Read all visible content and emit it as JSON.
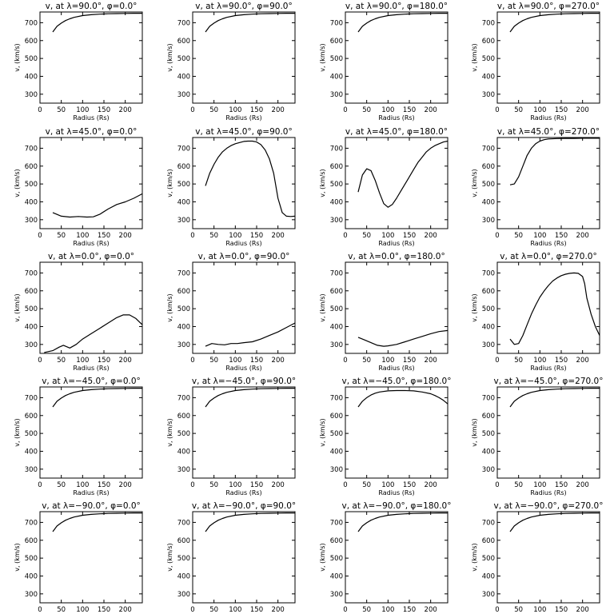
{
  "chart_data": [
    {
      "type": "line",
      "title": "v, at λ=90.0°, φ=0.0°",
      "xlabel": "Radius (Rs)",
      "ylabel": "v, (km/s)",
      "xlim": [
        0,
        240
      ],
      "ylim": [
        250,
        760
      ],
      "xticks": [
        0,
        50,
        100,
        150,
        200
      ],
      "yticks": [
        300,
        400,
        500,
        600,
        700
      ],
      "x": [
        30,
        40,
        50,
        60,
        70,
        80,
        100,
        120,
        140,
        160,
        180,
        200,
        220,
        240
      ],
      "y": [
        648,
        680,
        698,
        712,
        722,
        730,
        740,
        745,
        748,
        750,
        751,
        752,
        753,
        753
      ]
    },
    {
      "type": "line",
      "title": "v, at λ=90.0°, φ=90.0°",
      "xlabel": "Radius (Rs)",
      "ylabel": "v, (km/s)",
      "xlim": [
        0,
        240
      ],
      "ylim": [
        250,
        760
      ],
      "xticks": [
        0,
        50,
        100,
        150,
        200
      ],
      "yticks": [
        300,
        400,
        500,
        600,
        700
      ],
      "x": [
        30,
        40,
        50,
        60,
        70,
        80,
        100,
        120,
        140,
        160,
        180,
        200,
        220,
        240
      ],
      "y": [
        648,
        680,
        698,
        712,
        722,
        730,
        740,
        745,
        748,
        750,
        751,
        752,
        753,
        753
      ]
    },
    {
      "type": "line",
      "title": "v, at λ=90.0°, φ=180.0°",
      "xlabel": "Radius (Rs)",
      "ylabel": "v, (km/s)",
      "xlim": [
        0,
        240
      ],
      "ylim": [
        250,
        760
      ],
      "xticks": [
        0,
        50,
        100,
        150,
        200
      ],
      "yticks": [
        300,
        400,
        500,
        600,
        700
      ],
      "x": [
        30,
        40,
        50,
        60,
        70,
        80,
        100,
        120,
        140,
        160,
        180,
        200,
        220,
        240
      ],
      "y": [
        648,
        680,
        698,
        712,
        722,
        730,
        740,
        745,
        748,
        750,
        751,
        752,
        753,
        753
      ]
    },
    {
      "type": "line",
      "title": "v, at λ=90.0°, φ=270.0°",
      "xlabel": "Radius (Rs)",
      "ylabel": "v, (km/s)",
      "xlim": [
        0,
        240
      ],
      "ylim": [
        250,
        760
      ],
      "xticks": [
        0,
        50,
        100,
        150,
        200
      ],
      "yticks": [
        300,
        400,
        500,
        600,
        700
      ],
      "x": [
        30,
        40,
        50,
        60,
        70,
        80,
        100,
        120,
        140,
        160,
        180,
        200,
        220,
        240
      ],
      "y": [
        648,
        680,
        698,
        712,
        722,
        730,
        740,
        745,
        748,
        750,
        751,
        752,
        753,
        753
      ]
    },
    {
      "type": "line",
      "title": "v, at λ=45.0°, φ=0.0°",
      "xlabel": "Radius (Rs)",
      "ylabel": "v, (km/s)",
      "xlim": [
        0,
        240
      ],
      "ylim": [
        250,
        760
      ],
      "xticks": [
        0,
        50,
        100,
        150,
        200
      ],
      "yticks": [
        300,
        400,
        500,
        600,
        700
      ],
      "x": [
        30,
        50,
        70,
        90,
        110,
        125,
        140,
        160,
        180,
        200,
        220,
        240
      ],
      "y": [
        340,
        320,
        315,
        318,
        315,
        316,
        330,
        360,
        385,
        400,
        420,
        445
      ]
    },
    {
      "type": "line",
      "title": "v, at λ=45.0°, φ=90.0°",
      "xlabel": "Radius (Rs)",
      "ylabel": "v, (km/s)",
      "xlim": [
        0,
        240
      ],
      "ylim": [
        250,
        760
      ],
      "xticks": [
        0,
        50,
        100,
        150,
        200
      ],
      "yticks": [
        300,
        400,
        500,
        600,
        700
      ],
      "x": [
        30,
        40,
        50,
        60,
        70,
        80,
        90,
        100,
        110,
        120,
        130,
        140,
        150,
        160,
        170,
        180,
        190,
        200,
        210,
        220,
        230,
        240
      ],
      "y": [
        490,
        560,
        610,
        650,
        680,
        700,
        715,
        725,
        732,
        738,
        740,
        740,
        735,
        720,
        690,
        640,
        560,
        420,
        340,
        320,
        318,
        320
      ]
    },
    {
      "type": "line",
      "title": "v, at λ=45.0°, φ=180.0°",
      "xlabel": "Radius (Rs)",
      "ylabel": "v, (km/s)",
      "xlim": [
        0,
        240
      ],
      "ylim": [
        250,
        760
      ],
      "xticks": [
        0,
        50,
        100,
        150,
        200
      ],
      "yticks": [
        300,
        400,
        500,
        600,
        700
      ],
      "x": [
        30,
        40,
        50,
        60,
        70,
        80,
        90,
        100,
        110,
        120,
        130,
        140,
        150,
        160,
        170,
        180,
        190,
        200,
        210,
        220,
        230,
        240
      ],
      "y": [
        455,
        550,
        585,
        575,
        520,
        450,
        390,
        370,
        385,
        420,
        460,
        500,
        540,
        580,
        620,
        650,
        680,
        700,
        715,
        725,
        735,
        740
      ]
    },
    {
      "type": "line",
      "title": "v, at λ=45.0°, φ=270.0°",
      "xlabel": "Radius (Rs)",
      "ylabel": "v, (km/s)",
      "xlim": [
        0,
        240
      ],
      "ylim": [
        250,
        760
      ],
      "xticks": [
        0,
        50,
        100,
        150,
        200
      ],
      "yticks": [
        300,
        400,
        500,
        600,
        700
      ],
      "x": [
        30,
        40,
        50,
        60,
        70,
        80,
        90,
        100,
        110,
        120,
        140,
        160,
        180,
        200,
        220,
        240
      ],
      "y": [
        495,
        500,
        540,
        600,
        660,
        700,
        725,
        740,
        748,
        752,
        754,
        755,
        755,
        756,
        756,
        756
      ]
    },
    {
      "type": "line",
      "title": "v, at λ=0.0°, φ=0.0°",
      "xlabel": "Radius (Rs)",
      "ylabel": "v, (km/s)",
      "xlim": [
        0,
        240
      ],
      "ylim": [
        250,
        760
      ],
      "xticks": [
        0,
        50,
        100,
        150,
        200
      ],
      "yticks": [
        300,
        400,
        500,
        600,
        700
      ],
      "x": [
        10,
        30,
        45,
        55,
        70,
        85,
        100,
        120,
        140,
        160,
        180,
        195,
        210,
        225,
        240
      ],
      "y": [
        255,
        265,
        285,
        295,
        280,
        300,
        330,
        360,
        390,
        420,
        450,
        465,
        465,
        445,
        410
      ]
    },
    {
      "type": "line",
      "title": "v, at λ=0.0°, φ=90.0°",
      "xlabel": "Radius (Rs)",
      "ylabel": "v, (km/s)",
      "xlim": [
        0,
        240
      ],
      "ylim": [
        250,
        760
      ],
      "xticks": [
        0,
        50,
        100,
        150,
        200
      ],
      "yticks": [
        300,
        400,
        500,
        600,
        700
      ],
      "x": [
        30,
        45,
        60,
        75,
        90,
        105,
        120,
        140,
        160,
        180,
        200,
        220,
        240
      ],
      "y": [
        290,
        305,
        300,
        298,
        305,
        305,
        310,
        315,
        330,
        350,
        370,
        395,
        420
      ]
    },
    {
      "type": "line",
      "title": "v, at λ=0.0°, φ=180.0°",
      "xlabel": "Radius (Rs)",
      "ylabel": "v, (km/s)",
      "xlim": [
        0,
        240
      ],
      "ylim": [
        250,
        760
      ],
      "xticks": [
        0,
        50,
        100,
        150,
        200
      ],
      "yticks": [
        300,
        400,
        500,
        600,
        700
      ],
      "x": [
        30,
        45,
        60,
        75,
        90,
        100,
        120,
        140,
        160,
        180,
        200,
        220,
        240
      ],
      "y": [
        340,
        325,
        310,
        295,
        290,
        292,
        300,
        315,
        330,
        345,
        360,
        372,
        378
      ]
    },
    {
      "type": "line",
      "title": "v, at λ=0.0°, φ=270.0°",
      "xlabel": "Radius (Rs)",
      "ylabel": "v, (km/s)",
      "xlim": [
        0,
        240
      ],
      "ylim": [
        250,
        760
      ],
      "xticks": [
        0,
        50,
        100,
        150,
        200
      ],
      "yticks": [
        300,
        400,
        500,
        600,
        700
      ],
      "x": [
        30,
        40,
        50,
        60,
        70,
        80,
        90,
        100,
        110,
        120,
        130,
        140,
        150,
        160,
        170,
        180,
        190,
        200,
        205,
        210,
        220,
        230,
        240
      ],
      "y": [
        330,
        300,
        305,
        350,
        410,
        470,
        520,
        565,
        600,
        630,
        655,
        672,
        685,
        693,
        698,
        700,
        698,
        680,
        640,
        560,
        470,
        400,
        350
      ]
    },
    {
      "type": "line",
      "title": "v, at λ=−45.0°, φ=0.0°",
      "xlabel": "Radius (Rs)",
      "ylabel": "v, (km/s)",
      "xlim": [
        0,
        240
      ],
      "ylim": [
        250,
        760
      ],
      "xticks": [
        0,
        50,
        100,
        150,
        200
      ],
      "yticks": [
        300,
        400,
        500,
        600,
        700
      ],
      "x": [
        30,
        40,
        50,
        60,
        70,
        80,
        100,
        120,
        140,
        160,
        180,
        200,
        220,
        240
      ],
      "y": [
        648,
        680,
        698,
        712,
        722,
        730,
        740,
        745,
        748,
        750,
        751,
        752,
        753,
        753
      ]
    },
    {
      "type": "line",
      "title": "v, at λ=−45.0°, φ=90.0°",
      "xlabel": "Radius (Rs)",
      "ylabel": "v, (km/s)",
      "xlim": [
        0,
        240
      ],
      "ylim": [
        250,
        760
      ],
      "xticks": [
        0,
        50,
        100,
        150,
        200
      ],
      "yticks": [
        300,
        400,
        500,
        600,
        700
      ],
      "x": [
        30,
        40,
        50,
        60,
        70,
        80,
        100,
        120,
        140,
        160,
        180,
        200,
        220,
        240
      ],
      "y": [
        648,
        680,
        698,
        712,
        722,
        730,
        740,
        745,
        748,
        750,
        751,
        752,
        753,
        753
      ]
    },
    {
      "type": "line",
      "title": "v, at λ=−45.0°, φ=180.0°",
      "xlabel": "Radius (Rs)",
      "ylabel": "v, (km/s)",
      "xlim": [
        0,
        240
      ],
      "ylim": [
        250,
        760
      ],
      "xticks": [
        0,
        50,
        100,
        150,
        200
      ],
      "yticks": [
        300,
        400,
        500,
        600,
        700
      ],
      "x": [
        30,
        40,
        50,
        60,
        70,
        80,
        100,
        120,
        140,
        160,
        180,
        200,
        210,
        220,
        230,
        240
      ],
      "y": [
        648,
        680,
        700,
        715,
        725,
        732,
        738,
        740,
        740,
        738,
        732,
        722,
        712,
        700,
        685,
        665
      ]
    },
    {
      "type": "line",
      "title": "v, at λ=−45.0°, φ=270.0°",
      "xlabel": "Radius (Rs)",
      "ylabel": "v, (km/s)",
      "xlim": [
        0,
        240
      ],
      "ylim": [
        250,
        760
      ],
      "xticks": [
        0,
        50,
        100,
        150,
        200
      ],
      "yticks": [
        300,
        400,
        500,
        600,
        700
      ],
      "x": [
        30,
        40,
        50,
        60,
        70,
        80,
        100,
        120,
        140,
        160,
        180,
        200,
        220,
        240
      ],
      "y": [
        648,
        680,
        698,
        712,
        722,
        730,
        740,
        745,
        748,
        750,
        751,
        752,
        753,
        753
      ]
    },
    {
      "type": "line",
      "title": "v, at λ=−90.0°, φ=0.0°",
      "xlabel": "Radius (Rs)",
      "ylabel": "v, (km/s)",
      "xlim": [
        0,
        240
      ],
      "ylim": [
        250,
        760
      ],
      "xticks": [
        0,
        50,
        100,
        150,
        200
      ],
      "yticks": [
        300,
        400,
        500,
        600,
        700
      ],
      "x": [
        30,
        40,
        50,
        60,
        70,
        80,
        100,
        120,
        140,
        160,
        180,
        200,
        220,
        240
      ],
      "y": [
        648,
        680,
        698,
        712,
        722,
        730,
        740,
        745,
        748,
        750,
        751,
        752,
        753,
        753
      ]
    },
    {
      "type": "line",
      "title": "v, at λ=−90.0°, φ=90.0°",
      "xlabel": "Radius (Rs)",
      "ylabel": "v, (km/s)",
      "xlim": [
        0,
        240
      ],
      "ylim": [
        250,
        760
      ],
      "xticks": [
        0,
        50,
        100,
        150,
        200
      ],
      "yticks": [
        300,
        400,
        500,
        600,
        700
      ],
      "x": [
        30,
        40,
        50,
        60,
        70,
        80,
        100,
        120,
        140,
        160,
        180,
        200,
        220,
        240
      ],
      "y": [
        648,
        680,
        698,
        712,
        722,
        730,
        740,
        745,
        748,
        750,
        751,
        752,
        753,
        753
      ]
    },
    {
      "type": "line",
      "title": "v, at λ=−90.0°, φ=180.0°",
      "xlabel": "Radius (Rs)",
      "ylabel": "v, (km/s)",
      "xlim": [
        0,
        240
      ],
      "ylim": [
        250,
        760
      ],
      "xticks": [
        0,
        50,
        100,
        150,
        200
      ],
      "yticks": [
        300,
        400,
        500,
        600,
        700
      ],
      "x": [
        30,
        40,
        50,
        60,
        70,
        80,
        100,
        120,
        140,
        160,
        180,
        200,
        220,
        240
      ],
      "y": [
        648,
        680,
        698,
        712,
        722,
        730,
        740,
        745,
        748,
        750,
        751,
        752,
        753,
        753
      ]
    },
    {
      "type": "line",
      "title": "v, at λ=−90.0°, φ=270.0°",
      "xlabel": "Radius (Rs)",
      "ylabel": "v, (km/s)",
      "xlim": [
        0,
        240
      ],
      "ylim": [
        250,
        760
      ],
      "xticks": [
        0,
        50,
        100,
        150,
        200
      ],
      "yticks": [
        300,
        400,
        500,
        600,
        700
      ],
      "x": [
        30,
        40,
        50,
        60,
        70,
        80,
        100,
        120,
        140,
        160,
        180,
        200,
        220,
        240
      ],
      "y": [
        648,
        680,
        698,
        712,
        722,
        730,
        740,
        745,
        748,
        750,
        751,
        752,
        753,
        753
      ]
    }
  ]
}
